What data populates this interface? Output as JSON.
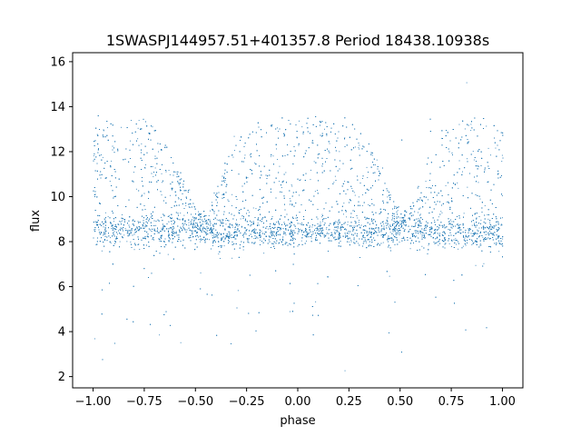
{
  "chart_data": {
    "type": "scatter",
    "title": "1SWASPJ144957.51+401357.8 Period 18438.10938s",
    "xlabel": "phase",
    "ylabel": "flux",
    "xlim": [
      -1.1,
      1.1
    ],
    "ylim": [
      1.5,
      16.4
    ],
    "x_ticks": [
      -1.0,
      -0.75,
      -0.5,
      -0.25,
      0.0,
      0.25,
      0.5,
      0.75,
      1.0
    ],
    "x_tick_labels": [
      "−1.00",
      "−0.75",
      "−0.50",
      "−0.25",
      "0.00",
      "0.25",
      "0.50",
      "0.75",
      "1.00"
    ],
    "y_ticks": [
      2,
      4,
      6,
      8,
      10,
      12,
      14,
      16
    ],
    "y_tick_labels": [
      "2",
      "4",
      "6",
      "8",
      "10",
      "12",
      "14",
      "16"
    ],
    "grid": false,
    "legend": "none",
    "marker_color": "#1f77b4",
    "series": [
      {
        "name": "",
        "description_of_distribution": "dense band near flux 8.5 across all phases; upper envelope reaching ~13.5 peaking near phase -0.8, 0.2 and 0.85, dipping to ~9 near phase -0.45 and 0.55; sparse outliers from 2 to 16",
        "x": [
          -1.0,
          -0.95,
          -0.9,
          -0.85,
          -0.8,
          -0.75,
          -0.7,
          -0.65,
          -0.6,
          -0.55,
          -0.5,
          -0.45,
          -0.4,
          -0.35,
          -0.3,
          -0.25,
          -0.2,
          -0.15,
          -0.1,
          -0.05,
          0.0,
          0.05,
          0.1,
          0.15,
          0.2,
          0.25,
          0.3,
          0.35,
          0.4,
          0.45,
          0.5,
          0.55,
          0.6,
          0.65,
          0.7,
          0.75,
          0.8,
          0.85,
          0.9,
          0.95,
          1.0
        ],
        "y_band_center": [
          8.5,
          8.5,
          8.5,
          8.5,
          8.5,
          8.5,
          8.5,
          8.5,
          8.5,
          8.5,
          8.4,
          8.4,
          8.4,
          8.4,
          8.4,
          8.4,
          8.4,
          8.4,
          8.4,
          8.4,
          8.5,
          8.5,
          8.5,
          8.5,
          8.5,
          8.5,
          8.5,
          8.5,
          8.5,
          8.4,
          8.4,
          8.4,
          8.4,
          8.4,
          8.4,
          8.4,
          8.4,
          8.4,
          8.4,
          8.4,
          8.4
        ],
        "y_upper_envelope": [
          13.0,
          13.2,
          13.4,
          13.5,
          13.6,
          13.4,
          13.0,
          12.4,
          11.6,
          10.6,
          9.6,
          9.2,
          10.2,
          11.8,
          12.6,
          13.0,
          13.2,
          13.3,
          13.4,
          13.5,
          13.5,
          13.6,
          13.6,
          13.6,
          13.6,
          13.4,
          13.0,
          12.4,
          11.4,
          10.2,
          9.2,
          9.4,
          10.6,
          12.2,
          12.8,
          13.2,
          13.4,
          13.4,
          13.4,
          13.4,
          13.3
        ]
      }
    ],
    "n_points": 9000
  }
}
